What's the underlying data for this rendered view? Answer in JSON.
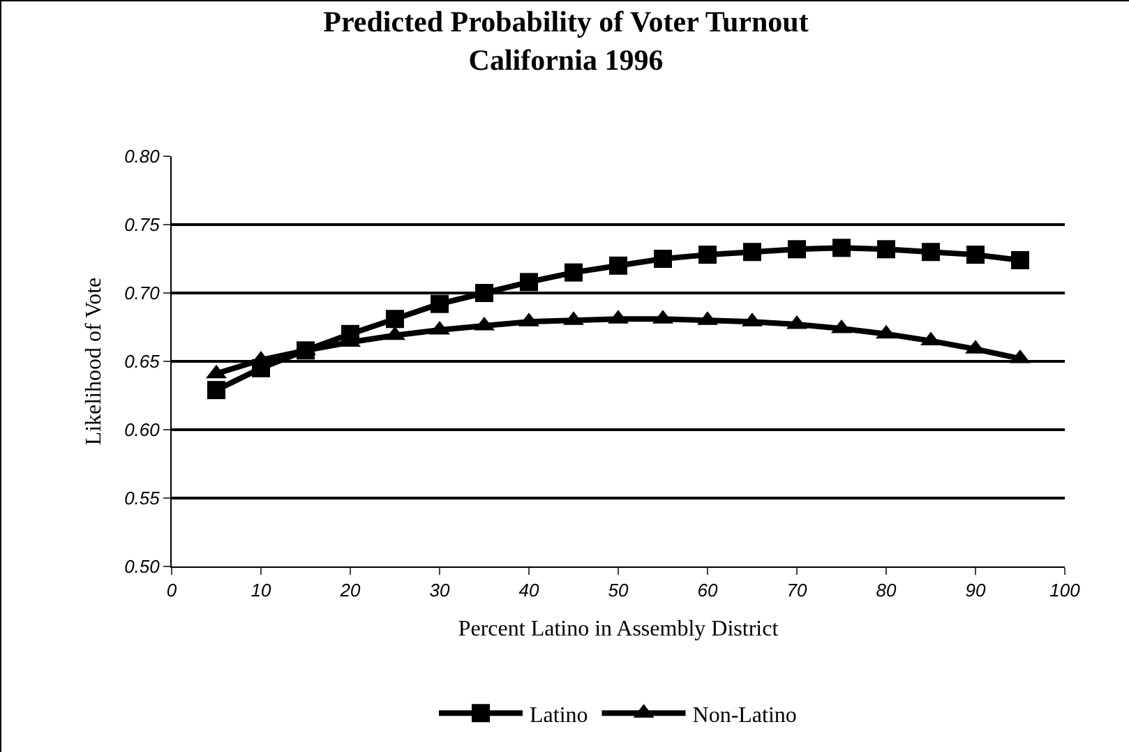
{
  "chart_data": {
    "type": "line",
    "title": "Predicted Probability of Voter Turnout\nCalifornia 1996",
    "xlabel": "Percent Latino in Assembly District",
    "ylabel": "Likelihood of Vote",
    "x": [
      5,
      10,
      15,
      20,
      25,
      30,
      35,
      40,
      45,
      50,
      55,
      60,
      65,
      70,
      75,
      80,
      85,
      90,
      95
    ],
    "series": [
      {
        "name": "Latino",
        "color": "#000000",
        "marker": "square",
        "values": [
          0.629,
          0.645,
          0.658,
          0.67,
          0.681,
          0.692,
          0.7,
          0.708,
          0.715,
          0.72,
          0.725,
          0.728,
          0.73,
          0.732,
          0.733,
          0.732,
          0.73,
          0.728,
          0.724
        ]
      },
      {
        "name": "Non-Latino",
        "color": "#000000",
        "marker": "triangle",
        "values": [
          0.641,
          0.651,
          0.658,
          0.664,
          0.669,
          0.673,
          0.676,
          0.679,
          0.68,
          0.681,
          0.681,
          0.68,
          0.679,
          0.677,
          0.674,
          0.67,
          0.665,
          0.659,
          0.652
        ]
      }
    ],
    "xlim": [
      0,
      100
    ],
    "xticks": [
      0,
      10,
      20,
      30,
      40,
      50,
      60,
      70,
      80,
      90,
      100
    ],
    "ylim": [
      0.5,
      0.8
    ],
    "yticks": [
      {
        "value": 0.5,
        "label": "0.50"
      },
      {
        "value": 0.55,
        "label": "0.55"
      },
      {
        "value": 0.6,
        "label": "0.60"
      },
      {
        "value": 0.65,
        "label": "0.65"
      },
      {
        "value": 0.7,
        "label": "0.70"
      },
      {
        "value": 0.75,
        "label": "0.75"
      },
      {
        "value": 0.8,
        "label": "0.80"
      }
    ],
    "grid": "y",
    "legend": "bottom",
    "line_style": "solid"
  }
}
